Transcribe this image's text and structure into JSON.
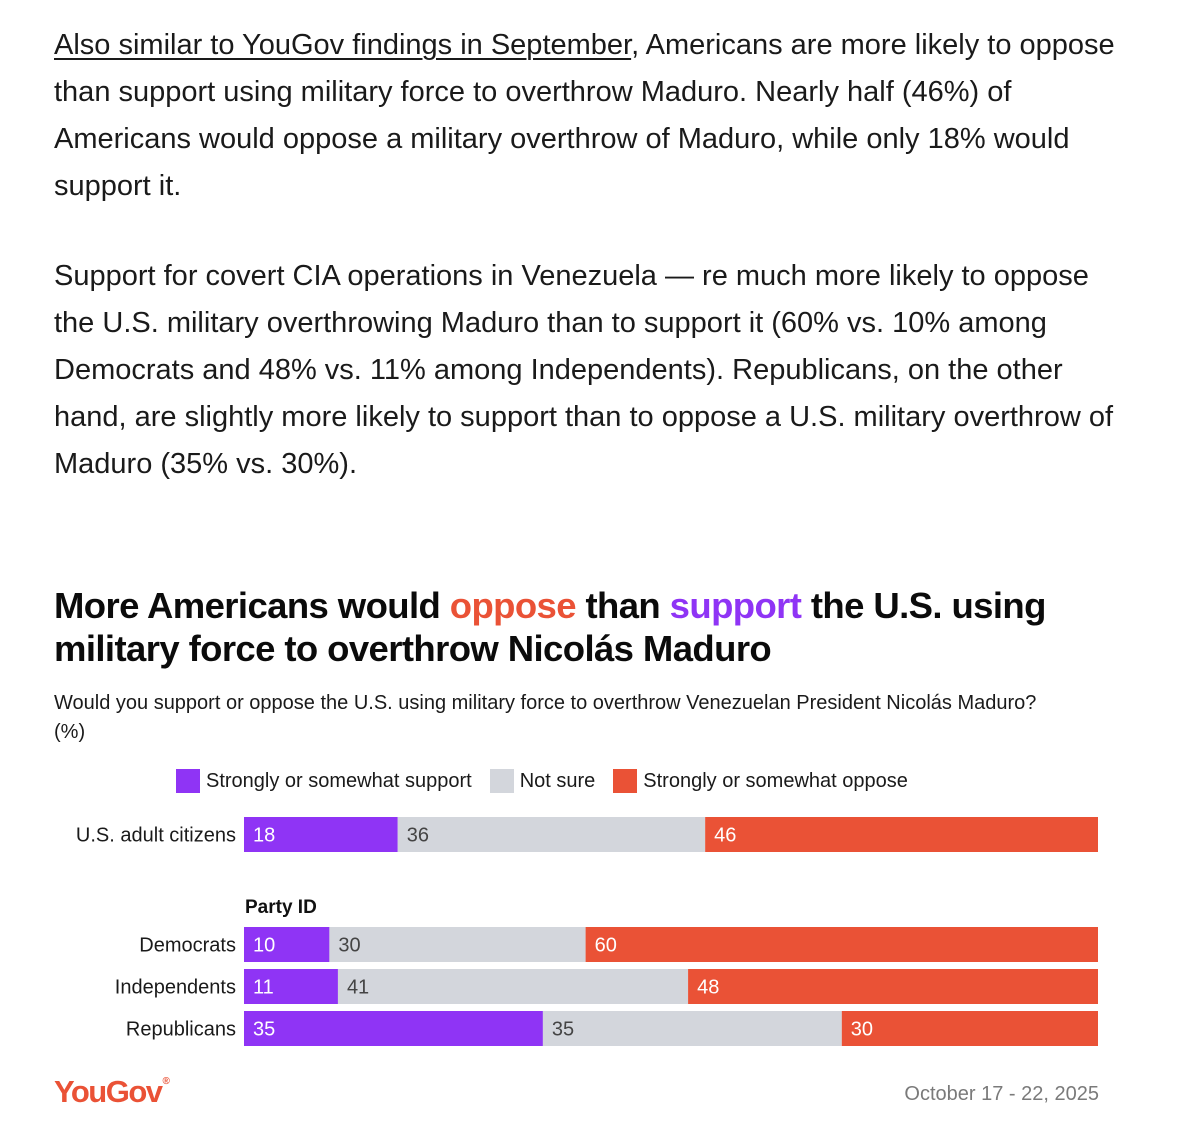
{
  "article": {
    "p1_link": "Also similar to YouGov findings in September",
    "p1_rest": ", Americans are more likely to oppose than support using military force to overthrow Maduro. Nearly half (46%) of Americans would oppose a military overthrow of Maduro, while only 18% would support it.",
    "p2": "Support for covert CIA operations in Venezuela — re much more likely to oppose the U.S. military overthrowing Maduro than to support it (60% vs. 10% among Democrats and 48% vs. 11% among Independents). Republicans, on the other hand, are slightly more likely to support than to oppose a U.S. military overthrow of Maduro (35% vs. 30%)."
  },
  "colors": {
    "support": "#8f34f5",
    "not_sure": "#d3d6dc",
    "oppose": "#ea5236",
    "support_text": "#ffffff",
    "not_sure_text": "#444444",
    "oppose_text": "#ffffff"
  },
  "chart_data": {
    "type": "bar",
    "orientation": "horizontal",
    "stacked": true,
    "title_parts": {
      "t1": "More Americans would ",
      "t2": "oppose",
      "t3": " than ",
      "t4": "support",
      "t5": " the U.S. using military force to overthrow Nicolás Maduro"
    },
    "subtitle": "Would you support or oppose the U.S. using military force to overthrow Venezuelan President Nicolás Maduro? (%)",
    "xlim": [
      0,
      100
    ],
    "legend_position": "top",
    "group_label": "Party ID",
    "categories": [
      "U.S. adult citizens",
      "Democrats",
      "Independents",
      "Republicans"
    ],
    "series": [
      {
        "name": "Strongly or somewhat support",
        "values": [
          18,
          10,
          11,
          35
        ]
      },
      {
        "name": "Not sure",
        "values": [
          36,
          30,
          41,
          35
        ]
      },
      {
        "name": "Strongly or somewhat oppose",
        "values": [
          46,
          60,
          48,
          30
        ]
      }
    ]
  },
  "footer": {
    "logo": "YouGov",
    "logo_mark": "®",
    "date": "October 17 - 22, 2025"
  }
}
